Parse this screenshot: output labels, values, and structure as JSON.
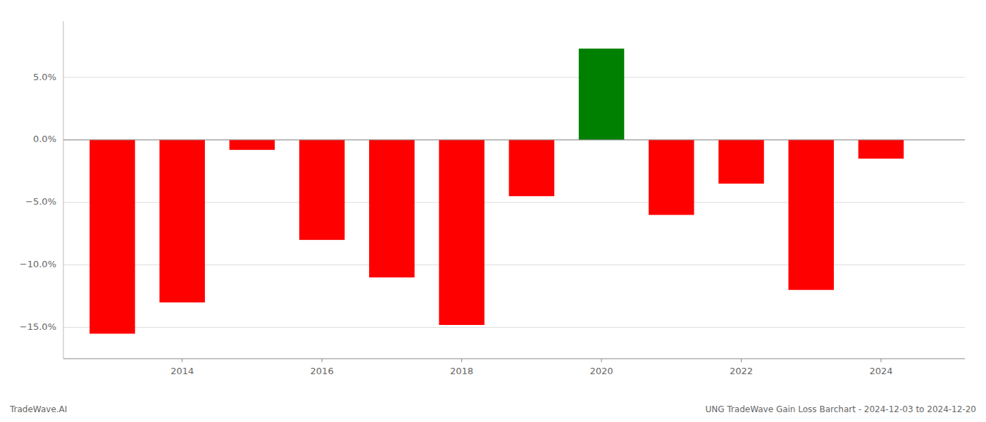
{
  "chart_data": {
    "type": "bar",
    "title": "UNG TradeWave Gain Loss Barchart - 2024-12-03 to 2024-12-20",
    "annotations": [
      "TradeWave.AI"
    ],
    "x": [
      2013,
      2014,
      2015,
      2016,
      2017,
      2018,
      2019,
      2020,
      2021,
      2022,
      2023,
      2024
    ],
    "values": [
      -15.5,
      -13.0,
      -0.8,
      -8.0,
      -11.0,
      -14.8,
      -4.5,
      7.3,
      -6.0,
      -3.5,
      -12.0,
      -1.5
    ],
    "colors": [
      "red",
      "red",
      "red",
      "red",
      "red",
      "red",
      "red",
      "green",
      "red",
      "red",
      "red",
      "red"
    ],
    "xlim": [
      2012.3,
      2025.2
    ],
    "xticks": [
      2014,
      2016,
      2018,
      2020,
      2022,
      2024
    ],
    "ylim": [
      -17.5,
      9.5
    ],
    "yticks": [
      {
        "value": -15.0,
        "label": "−15.0%"
      },
      {
        "value": -10.0,
        "label": "−10.0%"
      },
      {
        "value": -5.0,
        "label": "−5.0%"
      },
      {
        "value": 0.0,
        "label": "0.0%"
      },
      {
        "value": 5.0,
        "label": "5.0%"
      }
    ],
    "grid": true
  }
}
